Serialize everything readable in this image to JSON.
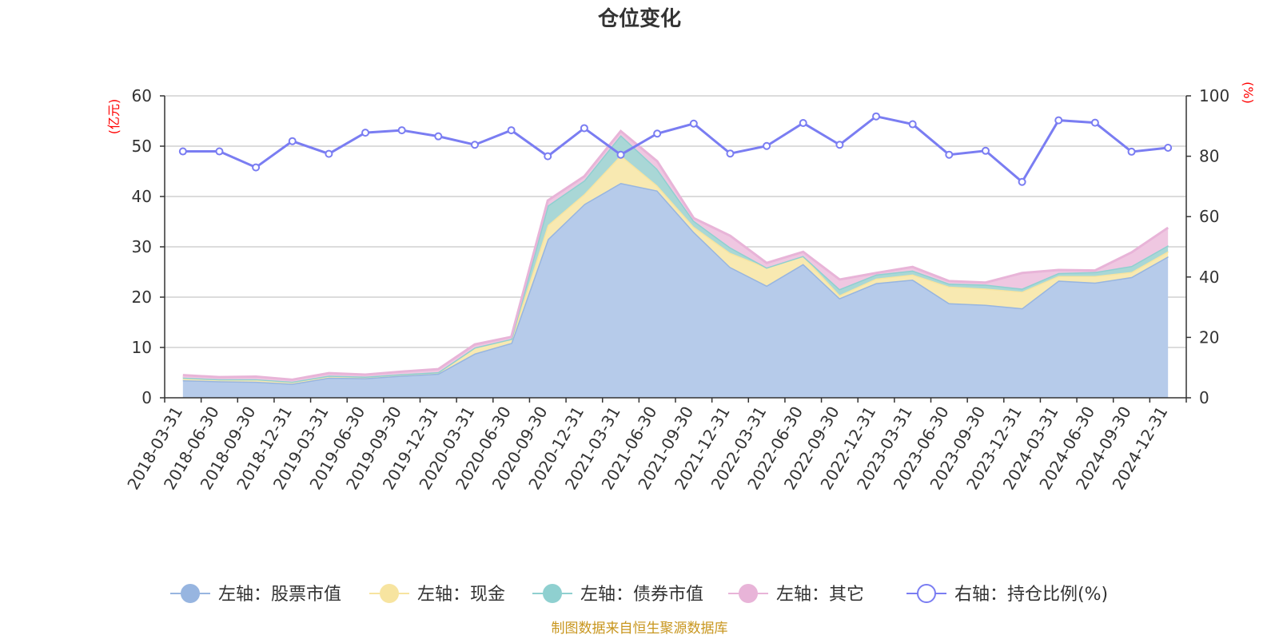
{
  "chart_data": {
    "type": "area",
    "title": "仓位变化",
    "left_axis": {
      "unit": "(亿元)",
      "ylim": [
        0,
        60
      ],
      "ticks": [
        0,
        10,
        20,
        30,
        40,
        50,
        60
      ]
    },
    "right_axis": {
      "unit": "(%)",
      "ylim": [
        0,
        100
      ],
      "ticks": [
        0,
        20,
        40,
        60,
        80,
        100
      ]
    },
    "categories": [
      "2018-03-31",
      "2018-06-30",
      "2018-09-30",
      "2018-12-31",
      "2019-03-31",
      "2019-06-30",
      "2019-09-30",
      "2019-12-31",
      "2020-03-31",
      "2020-06-30",
      "2020-09-30",
      "2020-12-31",
      "2021-03-31",
      "2021-06-30",
      "2021-09-30",
      "2021-12-31",
      "2022-03-31",
      "2022-06-30",
      "2022-09-30",
      "2022-12-31",
      "2023-03-31",
      "2023-06-30",
      "2023-09-30",
      "2023-12-31",
      "2024-03-31",
      "2024-06-30",
      "2024-09-30",
      "2024-12-31"
    ],
    "stacked_series": [
      {
        "name": "左轴：股票市值",
        "axis": "left",
        "color": "#97b5e0",
        "fill": "#b6cbea",
        "values": [
          3.5,
          3.3,
          3.2,
          2.8,
          4.0,
          3.9,
          4.4,
          4.8,
          8.8,
          10.9,
          31.5,
          38.5,
          42.7,
          41.2,
          33.0,
          26.0,
          22.3,
          26.6,
          19.8,
          22.8,
          23.5,
          18.8,
          18.5,
          17.8,
          23.3,
          22.9,
          24.0,
          28.1
        ]
      },
      {
        "name": "左轴：现金",
        "axis": "left",
        "color": "#f7e4a0",
        "fill": "#f8e9b1",
        "values": [
          0.5,
          0.4,
          0.5,
          0.4,
          0.4,
          0.3,
          0.3,
          0.3,
          1.2,
          0.8,
          2.8,
          2.0,
          5.5,
          1.0,
          1.0,
          2.8,
          3.6,
          1.6,
          0.6,
          0.9,
          1.0,
          3.3,
          3.2,
          3.3,
          0.9,
          1.3,
          1.0,
          1.0
        ]
      },
      {
        "name": "左轴：债券市值",
        "axis": "left",
        "color": "#8fd0d0",
        "fill": "#a9d7d6",
        "values": [
          0,
          0,
          0,
          0,
          0,
          0,
          0,
          0,
          0,
          0,
          3.9,
          2.7,
          4.0,
          3.3,
          1.2,
          1.1,
          0,
          0,
          1.2,
          0.8,
          0.8,
          0.6,
          0.8,
          0.6,
          0.6,
          0.8,
          1.2,
          1.2
        ]
      },
      {
        "name": "左轴：其它",
        "axis": "left",
        "color": "#e8b4d8",
        "fill": "#efc7e1",
        "values": [
          0.5,
          0.4,
          0.5,
          0.4,
          0.5,
          0.4,
          0.5,
          0.6,
          0.6,
          0.4,
          1.0,
          0.8,
          0.8,
          1.5,
          0.5,
          2.3,
          0.9,
          0.8,
          1.9,
          0.3,
          0.7,
          0.5,
          0.4,
          3.1,
          0.6,
          0.3,
          2.7,
          3.5
        ]
      }
    ],
    "line_series": {
      "name": "右轴：持仓比例(%)",
      "axis": "right",
      "color": "#7a7df2",
      "values": [
        81.6,
        81.6,
        76.3,
        85.0,
        80.8,
        87.8,
        88.6,
        86.6,
        83.8,
        88.6,
        80.0,
        89.3,
        80.5,
        87.5,
        90.8,
        80.9,
        83.4,
        91.0,
        83.8,
        93.2,
        90.6,
        80.5,
        81.8,
        71.5,
        91.9,
        91.1,
        81.5,
        82.8
      ]
    },
    "legend_position": "bottom",
    "grid": true
  },
  "footer": {
    "source": "制图数据来自恒生聚源数据库"
  }
}
